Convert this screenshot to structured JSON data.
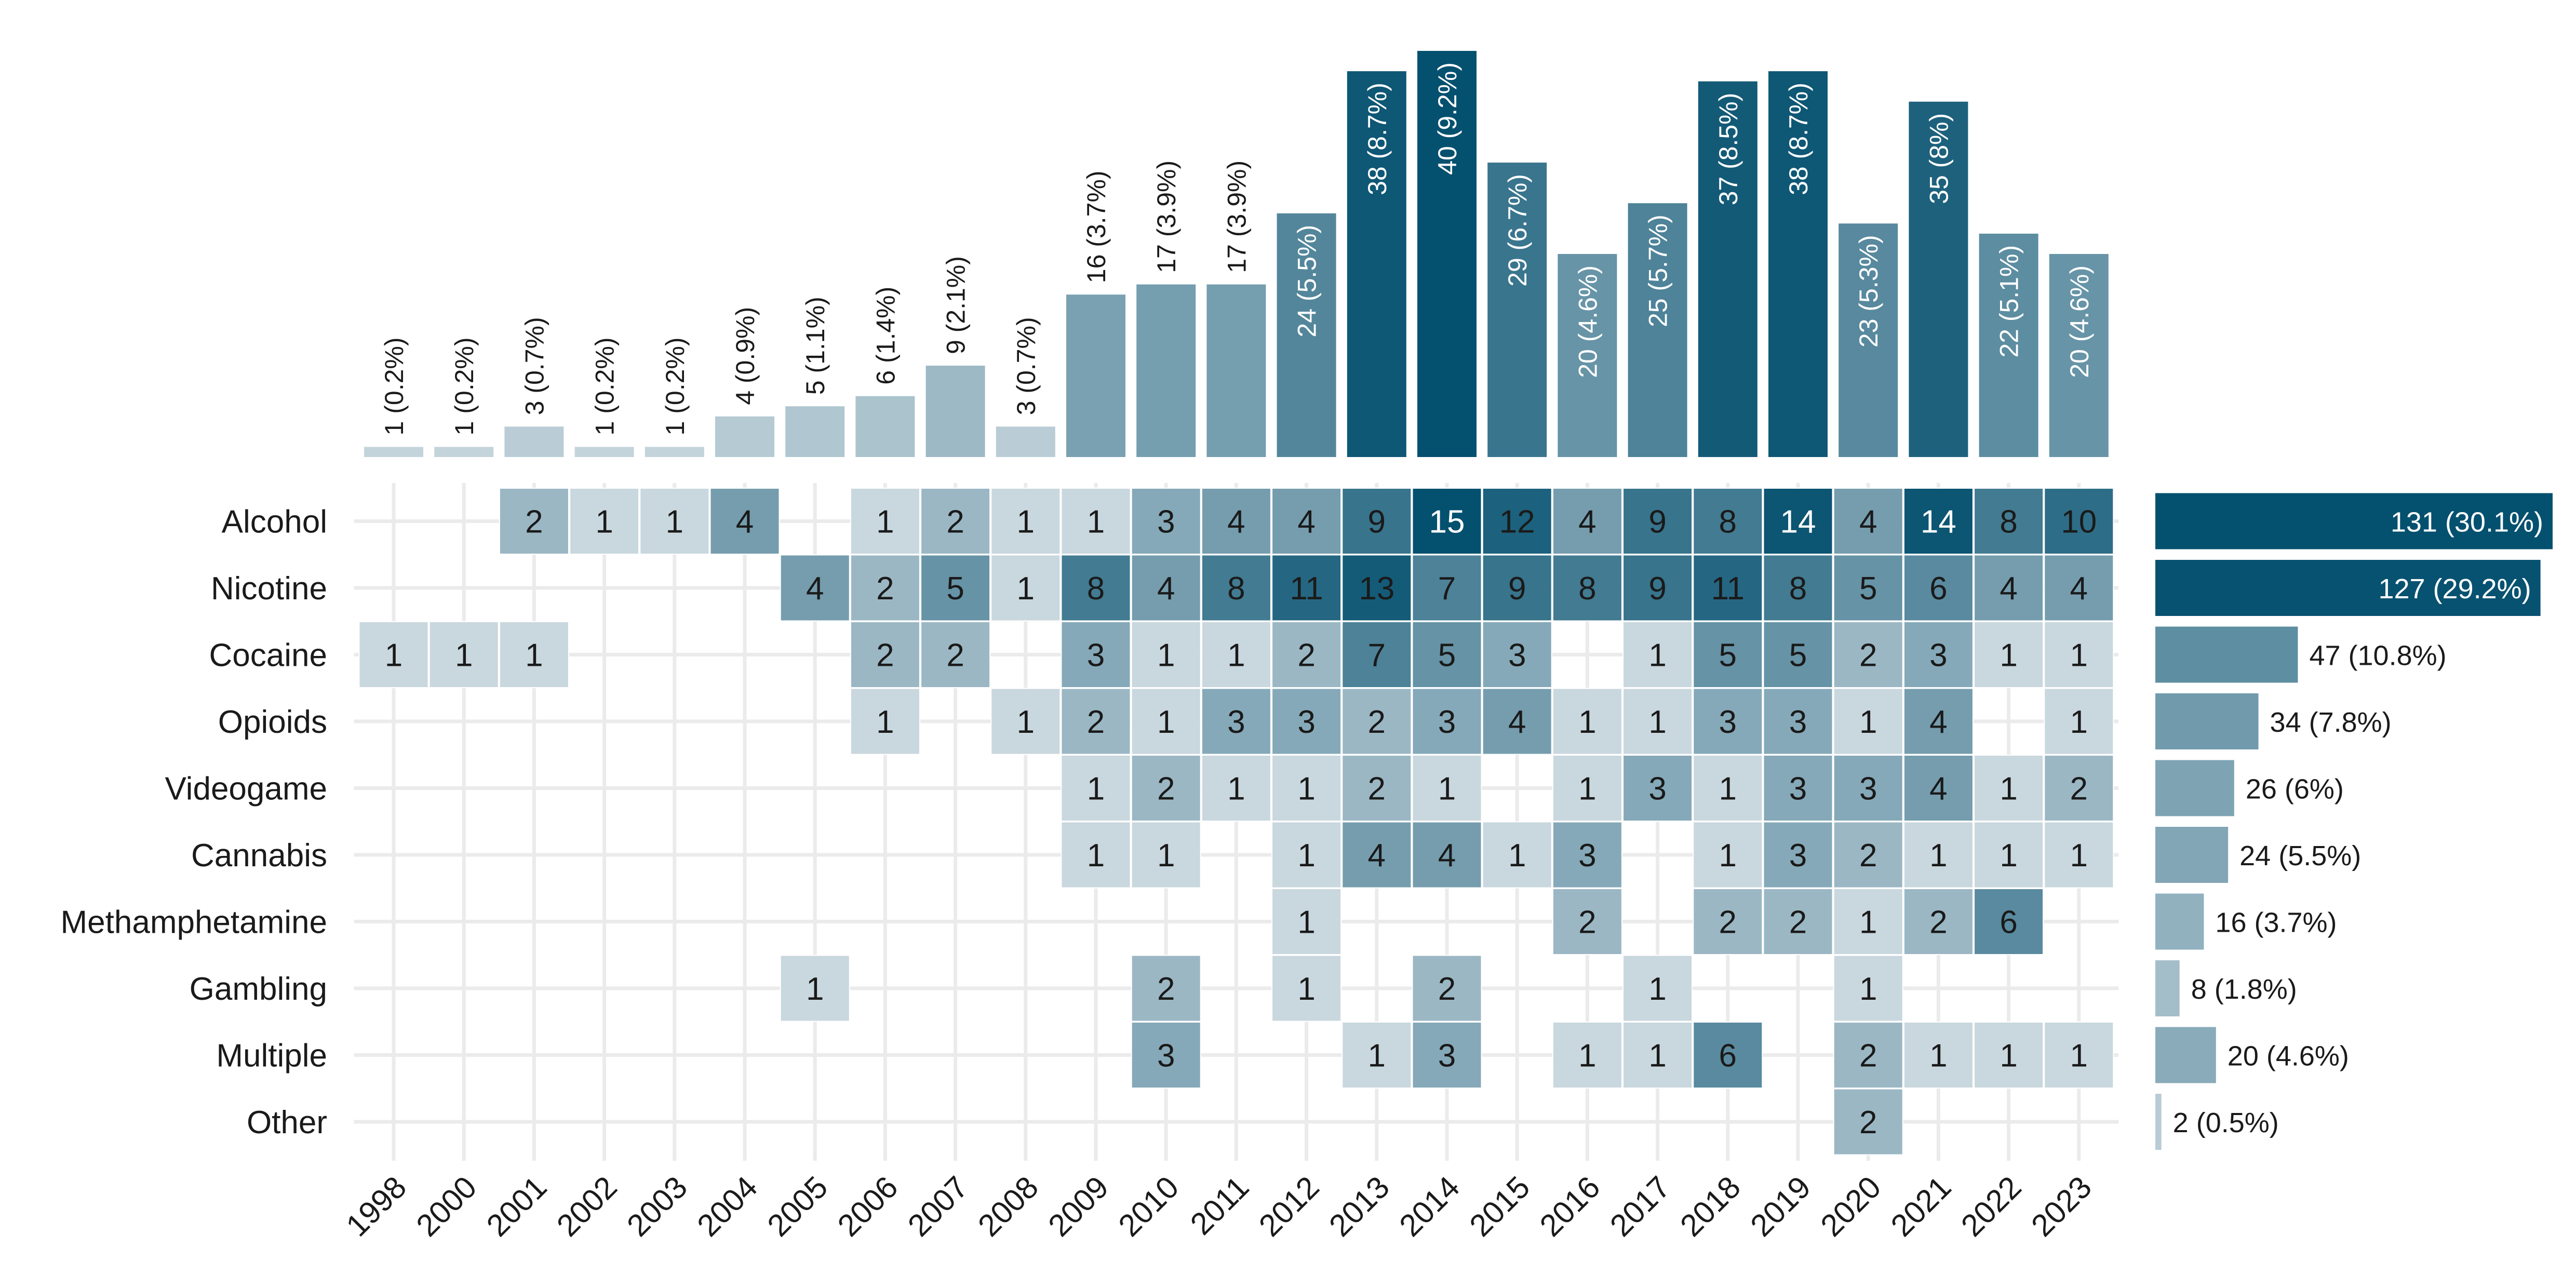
{
  "chart_data": {
    "type": "heatmap",
    "title": "",
    "xlabel": "",
    "ylabel": "",
    "years": [
      "1998",
      "2000",
      "2001",
      "2002",
      "2003",
      "2004",
      "2005",
      "2006",
      "2007",
      "2008",
      "2009",
      "2010",
      "2011",
      "2012",
      "2013",
      "2014",
      "2015",
      "2016",
      "2017",
      "2018",
      "2019",
      "2020",
      "2021",
      "2022",
      "2023"
    ],
    "year_totals": [
      {
        "year": "1998",
        "count": 1,
        "label": "1 (0.2%)"
      },
      {
        "year": "2000",
        "count": 1,
        "label": "1 (0.2%)"
      },
      {
        "year": "2001",
        "count": 3,
        "label": "3 (0.7%)"
      },
      {
        "year": "2002",
        "count": 1,
        "label": "1 (0.2%)"
      },
      {
        "year": "2003",
        "count": 1,
        "label": "1 (0.2%)"
      },
      {
        "year": "2004",
        "count": 4,
        "label": "4 (0.9%)"
      },
      {
        "year": "2005",
        "count": 5,
        "label": "5 (1.1%)"
      },
      {
        "year": "2006",
        "count": 6,
        "label": "6 (1.4%)"
      },
      {
        "year": "2007",
        "count": 9,
        "label": "9 (2.1%)"
      },
      {
        "year": "2008",
        "count": 3,
        "label": "3 (0.7%)"
      },
      {
        "year": "2009",
        "count": 16,
        "label": "16 (3.7%)"
      },
      {
        "year": "2010",
        "count": 17,
        "label": "17 (3.9%)"
      },
      {
        "year": "2011",
        "count": 17,
        "label": "17 (3.9%)"
      },
      {
        "year": "2012",
        "count": 24,
        "label": "24 (5.5%)"
      },
      {
        "year": "2013",
        "count": 38,
        "label": "38 (8.7%)"
      },
      {
        "year": "2014",
        "count": 40,
        "label": "40 (9.2%)"
      },
      {
        "year": "2015",
        "count": 29,
        "label": "29 (6.7%)"
      },
      {
        "year": "2016",
        "count": 20,
        "label": "20 (4.6%)"
      },
      {
        "year": "2017",
        "count": 25,
        "label": "25 (5.7%)"
      },
      {
        "year": "2018",
        "count": 37,
        "label": "37 (8.5%)"
      },
      {
        "year": "2019",
        "count": 38,
        "label": "38 (8.7%)"
      },
      {
        "year": "2020",
        "count": 23,
        "label": "23 (5.3%)"
      },
      {
        "year": "2021",
        "count": 35,
        "label": "35 (8%)"
      },
      {
        "year": "2022",
        "count": 22,
        "label": "22 (5.1%)"
      },
      {
        "year": "2023",
        "count": 20,
        "label": "20 (4.6%)"
      }
    ],
    "categories": [
      "Alcohol",
      "Nicotine",
      "Cocaine",
      "Opioids",
      "Videogame",
      "Cannabis",
      "Methamphetamine",
      "Gambling",
      "Multiple",
      "Other"
    ],
    "category_totals": [
      {
        "category": "Alcohol",
        "count": 131,
        "label": "131 (30.1%)"
      },
      {
        "category": "Nicotine",
        "count": 127,
        "label": "127 (29.2%)"
      },
      {
        "category": "Cocaine",
        "count": 47,
        "label": "47 (10.8%)"
      },
      {
        "category": "Opioids",
        "count": 34,
        "label": "34 (7.8%)"
      },
      {
        "category": "Videogame",
        "count": 26,
        "label": "26 (6%)"
      },
      {
        "category": "Cannabis",
        "count": 24,
        "label": "24 (5.5%)"
      },
      {
        "category": "Methamphetamine",
        "count": 16,
        "label": "16 (3.7%)"
      },
      {
        "category": "Gambling",
        "count": 8,
        "label": "8 (1.8%)"
      },
      {
        "category": "Multiple",
        "count": 20,
        "label": "20 (4.6%)"
      },
      {
        "category": "Other",
        "count": 2,
        "label": "2 (0.5%)"
      }
    ],
    "cells": {
      "Alcohol": {
        "2001": 2,
        "2002": 1,
        "2003": 1,
        "2004": 4,
        "2006": 1,
        "2007": 2,
        "2008": 1,
        "2009": 1,
        "2010": 3,
        "2011": 4,
        "2012": 4,
        "2013": 9,
        "2014": 15,
        "2015": 12,
        "2016": 4,
        "2017": 9,
        "2018": 8,
        "2019": 14,
        "2020": 4,
        "2021": 14,
        "2022": 8,
        "2023": 10
      },
      "Nicotine": {
        "2005": 4,
        "2006": 2,
        "2007": 5,
        "2008": 1,
        "2009": 8,
        "2010": 4,
        "2011": 8,
        "2012": 11,
        "2013": 13,
        "2014": 7,
        "2015": 9,
        "2016": 8,
        "2017": 9,
        "2018": 11,
        "2019": 8,
        "2020": 5,
        "2021": 6,
        "2022": 4,
        "2023": 4
      },
      "Cocaine": {
        "1998": 1,
        "2000": 1,
        "2001": 1,
        "2006": 2,
        "2007": 2,
        "2009": 3,
        "2010": 1,
        "2011": 1,
        "2012": 2,
        "2013": 7,
        "2014": 5,
        "2015": 3,
        "2017": 1,
        "2018": 5,
        "2019": 5,
        "2020": 2,
        "2021": 3,
        "2022": 1,
        "2023": 1
      },
      "Opioids": {
        "2006": 1,
        "2008": 1,
        "2009": 2,
        "2010": 1,
        "2011": 3,
        "2012": 3,
        "2013": 2,
        "2014": 3,
        "2015": 4,
        "2016": 1,
        "2017": 1,
        "2018": 3,
        "2019": 3,
        "2020": 1,
        "2021": 4,
        "2023": 1
      },
      "Videogame": {
        "2009": 1,
        "2010": 2,
        "2011": 1,
        "2012": 1,
        "2013": 2,
        "2014": 1,
        "2016": 1,
        "2017": 3,
        "2018": 1,
        "2019": 3,
        "2020": 3,
        "2021": 4,
        "2022": 1,
        "2023": 2
      },
      "Cannabis": {
        "2009": 1,
        "2010": 1,
        "2012": 1,
        "2013": 4,
        "2014": 4,
        "2015": 1,
        "2016": 3,
        "2018": 1,
        "2019": 3,
        "2020": 2,
        "2021": 1,
        "2022": 1,
        "2023": 1
      },
      "Methamphetamine": {
        "2012": 1,
        "2016": 2,
        "2018": 2,
        "2019": 2,
        "2020": 1,
        "2021": 2,
        "2022": 6
      },
      "Gambling": {
        "2005": 1,
        "2010": 2,
        "2012": 1,
        "2014": 2,
        "2017": 1,
        "2020": 1
      },
      "Multiple": {
        "2010": 3,
        "2013": 1,
        "2014": 3,
        "2016": 1,
        "2017": 1,
        "2018": 6,
        "2020": 2,
        "2021": 1,
        "2022": 1,
        "2023": 1
      },
      "Other": {
        "2020": 2
      }
    },
    "colors": {
      "low": "#c9d7de",
      "high": "#04506f",
      "grid": "#ebebeb",
      "light_text": "#ffffff",
      "dark_text": "#1a1a1a"
    },
    "grid": true,
    "legend": "none"
  }
}
